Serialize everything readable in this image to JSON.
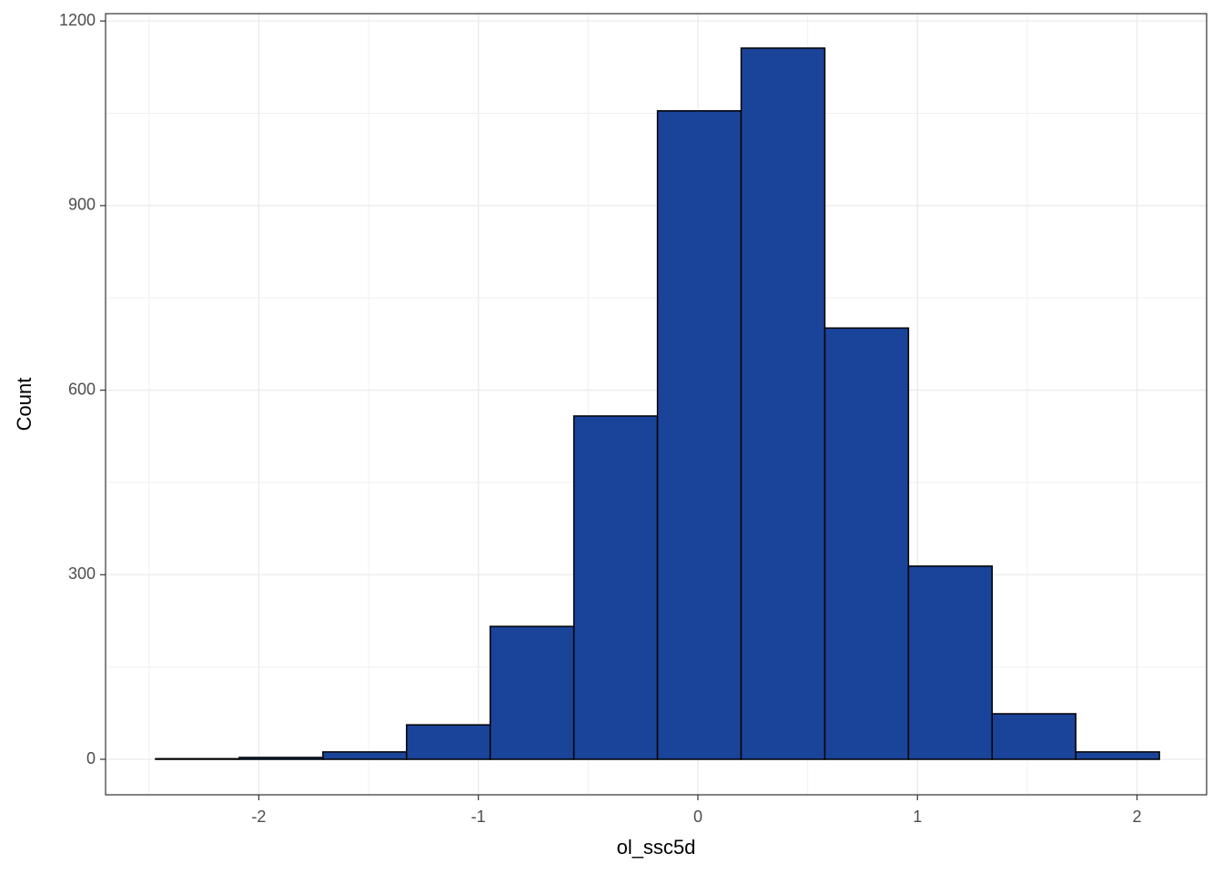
{
  "chart_data": {
    "type": "histogram",
    "x_label": "ol_ssc5d",
    "y_label": "Count",
    "bins": [
      -2.47,
      -2.089,
      -1.708,
      -1.327,
      -0.946,
      -0.565,
      -0.184,
      0.197,
      0.578,
      0.959,
      1.34,
      1.721,
      2.102
    ],
    "values": [
      1,
      3,
      12,
      56,
      216,
      558,
      1054,
      1156,
      701,
      314,
      74,
      12
    ],
    "color": "#1a4499",
    "edgecolor": "#000000",
    "xlim": [
      -2.698,
      2.317
    ],
    "xticks": [
      -2,
      -1,
      0,
      1,
      2
    ],
    "xminor": [
      -2.5,
      -1.5,
      -0.5,
      0.5,
      1.5
    ],
    "ylim": [
      -57.7,
      1212
    ],
    "yticks": [
      0,
      300,
      600,
      900,
      1200
    ],
    "yminor": [
      150,
      450,
      750,
      1050
    ],
    "grid": true
  }
}
